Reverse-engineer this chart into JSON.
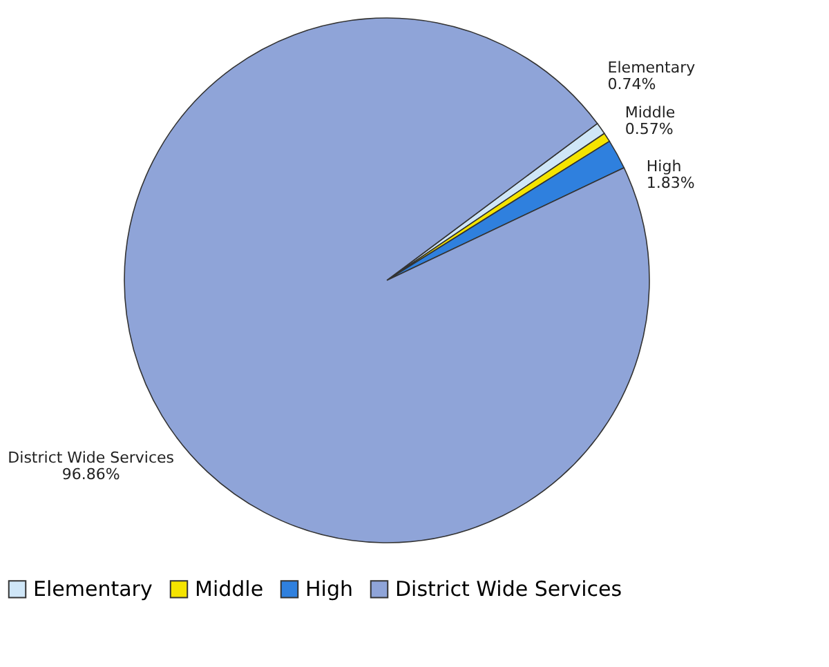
{
  "chart_data": {
    "type": "pie",
    "categories": [
      "Elementary",
      "Middle",
      "High",
      "District Wide Services"
    ],
    "values": [
      0.74,
      0.57,
      1.83,
      96.86
    ],
    "value_labels": [
      "0.74%",
      "0.57%",
      "1.83%",
      "96.86%"
    ],
    "colors": [
      "#cfe6f7",
      "#f5e400",
      "#2f80de",
      "#8fa4d8"
    ],
    "legend": "bottom"
  }
}
